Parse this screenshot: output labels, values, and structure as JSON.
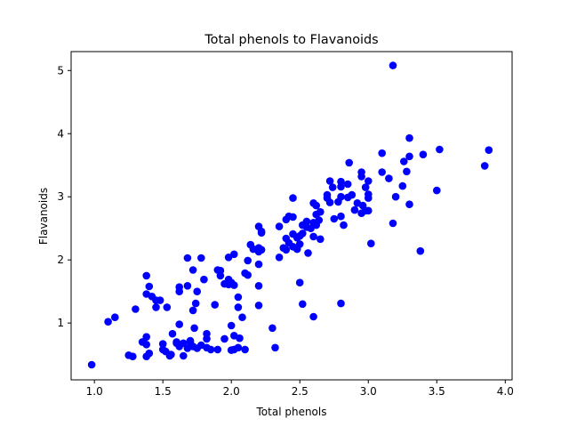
{
  "chart_data": {
    "type": "scatter",
    "title": "Total phenols to Flavanoids",
    "xlabel": "Total phenols",
    "ylabel": "Flavanoids",
    "xlim": [
      0.83,
      4.05
    ],
    "ylim": [
      0.1,
      5.3
    ],
    "xticks": [
      1.0,
      1.5,
      2.0,
      2.5,
      3.0,
      3.5,
      4.0
    ],
    "xtick_labels": [
      "1.0",
      "1.5",
      "2.0",
      "2.5",
      "3.0",
      "3.5",
      "4.0"
    ],
    "yticks": [
      1,
      2,
      3,
      4,
      5
    ],
    "ytick_labels": [
      "1",
      "2",
      "3",
      "4",
      "5"
    ],
    "grid": false,
    "marker_color": "#0000ff",
    "points": [
      [
        0.98,
        0.34
      ],
      [
        1.1,
        1.02
      ],
      [
        1.15,
        1.09
      ],
      [
        1.25,
        0.49
      ],
      [
        1.28,
        0.47
      ],
      [
        1.3,
        1.22
      ],
      [
        1.35,
        0.7
      ],
      [
        1.38,
        0.66
      ],
      [
        1.38,
        0.78
      ],
      [
        1.38,
        0.47
      ],
      [
        1.4,
        0.52
      ],
      [
        1.38,
        1.75
      ],
      [
        1.38,
        1.46
      ],
      [
        1.4,
        1.58
      ],
      [
        1.42,
        1.42
      ],
      [
        1.45,
        1.36
      ],
      [
        1.45,
        1.25
      ],
      [
        1.48,
        1.36
      ],
      [
        1.5,
        0.67
      ],
      [
        1.5,
        0.58
      ],
      [
        1.52,
        0.55
      ],
      [
        1.53,
        1.25
      ],
      [
        1.55,
        0.48
      ],
      [
        1.56,
        0.5
      ],
      [
        1.57,
        0.83
      ],
      [
        1.6,
        0.7
      ],
      [
        1.6,
        0.68
      ],
      [
        1.62,
        0.63
      ],
      [
        1.62,
        0.98
      ],
      [
        1.62,
        1.5
      ],
      [
        1.62,
        1.57
      ],
      [
        1.65,
        0.48
      ],
      [
        1.65,
        0.68
      ],
      [
        1.68,
        1.59
      ],
      [
        1.68,
        0.6
      ],
      [
        1.68,
        2.03
      ],
      [
        1.7,
        0.72
      ],
      [
        1.7,
        0.7
      ],
      [
        1.72,
        1.84
      ],
      [
        1.72,
        1.2
      ],
      [
        1.72,
        0.63
      ],
      [
        1.73,
        0.92
      ],
      [
        1.74,
        1.31
      ],
      [
        1.75,
        1.5
      ],
      [
        1.75,
        0.6
      ],
      [
        1.78,
        0.65
      ],
      [
        1.78,
        2.03
      ],
      [
        1.8,
        1.69
      ],
      [
        1.82,
        0.83
      ],
      [
        1.82,
        0.75
      ],
      [
        1.82,
        0.61
      ],
      [
        1.85,
        0.58
      ],
      [
        1.88,
        1.29
      ],
      [
        1.9,
        0.58
      ],
      [
        1.9,
        1.84
      ],
      [
        1.92,
        1.83
      ],
      [
        1.92,
        1.75
      ],
      [
        1.95,
        1.62
      ],
      [
        1.95,
        0.75
      ],
      [
        1.98,
        1.69
      ],
      [
        1.98,
        1.61
      ],
      [
        1.98,
        2.04
      ],
      [
        2.0,
        0.96
      ],
      [
        2.0,
        1.64
      ],
      [
        2.0,
        0.57
      ],
      [
        2.02,
        0.8
      ],
      [
        2.02,
        0.58
      ],
      [
        2.02,
        1.6
      ],
      [
        2.02,
        2.09
      ],
      [
        2.05,
        1.41
      ],
      [
        2.05,
        0.61
      ],
      [
        2.05,
        1.25
      ],
      [
        2.06,
        0.76
      ],
      [
        2.08,
        1.09
      ],
      [
        2.1,
        0.58
      ],
      [
        2.1,
        1.79
      ],
      [
        2.12,
        1.76
      ],
      [
        2.12,
        1.99
      ],
      [
        2.14,
        2.24
      ],
      [
        2.16,
        2.17
      ],
      [
        2.2,
        1.59
      ],
      [
        2.2,
        2.13
      ],
      [
        2.2,
        1.93
      ],
      [
        2.2,
        2.53
      ],
      [
        2.2,
        1.28
      ],
      [
        2.2,
        2.19
      ],
      [
        2.22,
        2.45
      ],
      [
        2.22,
        2.43
      ],
      [
        2.22,
        2.16
      ],
      [
        2.3,
        0.92
      ],
      [
        2.32,
        0.61
      ],
      [
        2.35,
        2.04
      ],
      [
        2.35,
        2.53
      ],
      [
        2.38,
        2.19
      ],
      [
        2.4,
        2.16
      ],
      [
        2.4,
        2.34
      ],
      [
        2.4,
        2.64
      ],
      [
        2.42,
        2.69
      ],
      [
        2.42,
        2.27
      ],
      [
        2.45,
        2.98
      ],
      [
        2.45,
        2.21
      ],
      [
        2.45,
        2.41
      ],
      [
        2.45,
        2.68
      ],
      [
        2.48,
        2.35
      ],
      [
        2.48,
        2.17
      ],
      [
        2.5,
        2.25
      ],
      [
        2.5,
        2.38
      ],
      [
        2.5,
        1.64
      ],
      [
        2.52,
        2.55
      ],
      [
        2.52,
        2.42
      ],
      [
        2.52,
        1.3
      ],
      [
        2.55,
        2.61
      ],
      [
        2.55,
        2.52
      ],
      [
        2.56,
        2.11
      ],
      [
        2.58,
        2.5
      ],
      [
        2.6,
        2.9
      ],
      [
        2.6,
        2.59
      ],
      [
        2.6,
        1.1
      ],
      [
        2.6,
        2.37
      ],
      [
        2.62,
        2.55
      ],
      [
        2.62,
        2.86
      ],
      [
        2.62,
        2.72
      ],
      [
        2.64,
        2.63
      ],
      [
        2.65,
        2.76
      ],
      [
        2.65,
        2.33
      ],
      [
        2.7,
        3.03
      ],
      [
        2.7,
        2.98
      ],
      [
        2.72,
        3.25
      ],
      [
        2.72,
        2.91
      ],
      [
        2.74,
        3.15
      ],
      [
        2.75,
        2.65
      ],
      [
        2.78,
        2.92
      ],
      [
        2.8,
        3.0
      ],
      [
        2.8,
        3.24
      ],
      [
        2.8,
        3.16
      ],
      [
        2.8,
        2.69
      ],
      [
        2.8,
        1.31
      ],
      [
        2.82,
        2.55
      ],
      [
        2.85,
        2.99
      ],
      [
        2.85,
        3.2
      ],
      [
        2.86,
        3.54
      ],
      [
        2.88,
        3.03
      ],
      [
        2.9,
        2.79
      ],
      [
        2.92,
        2.9
      ],
      [
        2.95,
        3.39
      ],
      [
        2.95,
        3.32
      ],
      [
        2.95,
        2.74
      ],
      [
        2.96,
        2.86
      ],
      [
        2.98,
        2.78
      ],
      [
        2.98,
        3.15
      ],
      [
        3.0,
        3.25
      ],
      [
        3.0,
        2.98
      ],
      [
        3.0,
        3.04
      ],
      [
        3.02,
        2.26
      ],
      [
        3.0,
        2.78
      ],
      [
        3.1,
        3.69
      ],
      [
        3.1,
        3.39
      ],
      [
        3.15,
        3.29
      ],
      [
        3.18,
        2.58
      ],
      [
        3.18,
        5.08
      ],
      [
        3.2,
        3.0
      ],
      [
        3.25,
        3.17
      ],
      [
        3.26,
        3.56
      ],
      [
        3.28,
        3.4
      ],
      [
        3.3,
        3.93
      ],
      [
        3.3,
        3.64
      ],
      [
        3.3,
        2.88
      ],
      [
        3.38,
        2.14
      ],
      [
        3.4,
        3.67
      ],
      [
        3.5,
        3.1
      ],
      [
        3.52,
        3.75
      ],
      [
        3.85,
        3.49
      ],
      [
        3.88,
        3.74
      ]
    ]
  }
}
